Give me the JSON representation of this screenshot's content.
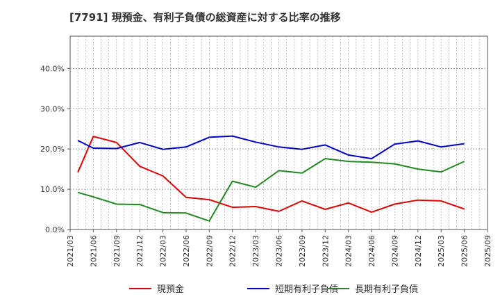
{
  "chart_data": {
    "type": "line",
    "title": "[7791]  現預金、有利子負債の総資産に対する比率の推移",
    "xlabel": "",
    "ylabel": "",
    "x_ticks": [
      "2021/03",
      "2021/06",
      "2021/09",
      "2021/12",
      "2022/03",
      "2022/06",
      "2022/09",
      "2022/12",
      "2023/03",
      "2023/06",
      "2023/09",
      "2023/12",
      "2024/03",
      "2024/06",
      "2024/09",
      "2024/12",
      "2025/03",
      "2025/06",
      "2025/09"
    ],
    "y_ticks": [
      "0.0%",
      "10.0%",
      "20.0%",
      "30.0%",
      "40.0%"
    ],
    "ylim": [
      0,
      48
    ],
    "x": [
      "2021/04",
      "2021/06",
      "2021/09",
      "2021/12",
      "2022/03",
      "2022/06",
      "2022/09",
      "2022/12",
      "2023/03",
      "2023/06",
      "2023/09",
      "2023/12",
      "2024/03",
      "2024/06",
      "2024/09",
      "2024/12",
      "2025/03",
      "2025/06"
    ],
    "series": [
      {
        "name": "現預金",
        "color": "#dd0000",
        "values": [
          14.2,
          23.1,
          21.6,
          15.7,
          13.3,
          8.0,
          7.4,
          5.5,
          5.7,
          4.5,
          7.1,
          5.0,
          6.6,
          4.3,
          6.3,
          7.3,
          7.1,
          5.1
        ]
      },
      {
        "name": "短期有利子負債",
        "color": "#0000cc",
        "values": [
          22.1,
          20.2,
          20.1,
          21.6,
          19.9,
          20.5,
          22.9,
          23.2,
          21.7,
          20.5,
          19.9,
          21.0,
          18.5,
          17.6,
          21.2,
          22.0,
          20.5,
          21.3
        ]
      },
      {
        "name": "長期有利子負債",
        "color": "#228822",
        "values": [
          9.2,
          8.1,
          6.3,
          6.2,
          4.2,
          4.1,
          2.1,
          12.0,
          10.5,
          14.6,
          14.0,
          17.6,
          16.9,
          16.7,
          16.3,
          15.0,
          14.3,
          16.9
        ]
      }
    ],
    "legend": "bottom",
    "grid": true
  }
}
